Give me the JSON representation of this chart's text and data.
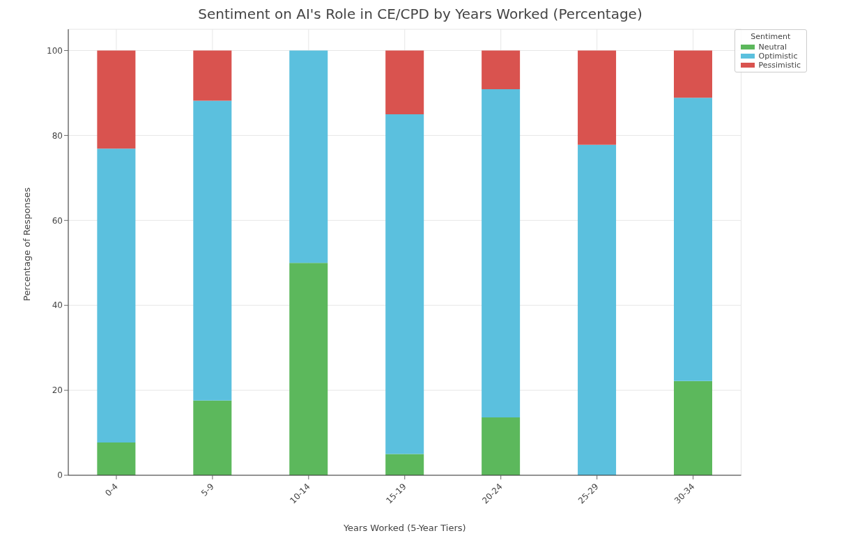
{
  "chart_data": {
    "type": "bar",
    "title": "Sentiment on AI's Role in CE/CPD by Years Worked (Percentage)",
    "xlabel": "Years Worked (5-Year Tiers)",
    "ylabel": "Percentage of Responses",
    "legend_title": "Sentiment",
    "categories": [
      "0-4",
      "5-9",
      "10-14",
      "15-19",
      "20-24",
      "25-29",
      "30-34"
    ],
    "series": [
      {
        "name": "Neutral",
        "color": "#5cb85c",
        "values": [
          7.7,
          17.6,
          50,
          5,
          13.6,
          0,
          22.2
        ]
      },
      {
        "name": "Optimistic",
        "color": "#5bc0de",
        "values": [
          69.2,
          70.6,
          50,
          80,
          77.3,
          77.8,
          66.7
        ]
      },
      {
        "name": "Pessimistic",
        "color": "#d9534f",
        "values": [
          23.1,
          11.8,
          0,
          15,
          9.1,
          22.2,
          11.1
        ]
      }
    ],
    "stacked": true,
    "ylim": [
      0,
      105
    ],
    "yticks": [
      0,
      20,
      40,
      60,
      80,
      100
    ],
    "grid": true,
    "legend": "top right"
  }
}
